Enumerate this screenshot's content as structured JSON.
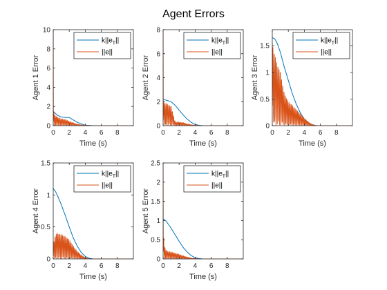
{
  "figure_title": "Agent Errors",
  "colors": {
    "kdistance": "#0072BD",
    "error": "#D95319",
    "axis": "#262626"
  },
  "chart_data": [
    {
      "type": "line",
      "title": "",
      "xlabel": "Time (s)",
      "ylabel": "Agent 1 Error",
      "xlim": [
        0,
        10
      ],
      "ylim": [
        0,
        10
      ],
      "xticks": [
        0,
        2,
        4,
        6,
        8
      ],
      "yticks": [
        0,
        2,
        4,
        6,
        8,
        10
      ],
      "grid": false,
      "legend": {
        "location": "top-right",
        "entries": [
          {
            "label": "k||e",
            "subscript": "T",
            "suffix": "||",
            "color": "#0072BD"
          },
          {
            "label": "||e||",
            "color": "#D95319"
          }
        ]
      },
      "series": [
        {
          "name": "k||eT||",
          "color": "#0072BD",
          "x": [
            0,
            0.5,
            1,
            1.5,
            2,
            2.5,
            3,
            3.5,
            4,
            4.5,
            5,
            6,
            8,
            10
          ],
          "y": [
            1.5,
            1.1,
            0.9,
            0.85,
            0.85,
            0.6,
            0.35,
            0.18,
            0.05,
            0.02,
            0,
            0,
            0,
            0
          ]
        },
        {
          "name": "||e||",
          "color": "#D95319",
          "x": [
            0,
            0.02,
            0.1,
            0.3,
            0.5,
            1,
            1.5,
            2,
            2.5,
            3,
            3.5,
            4,
            4.5,
            5,
            10
          ],
          "y": [
            10,
            1.6,
            1.3,
            1.0,
            0.9,
            0.7,
            0.65,
            0.45,
            0.3,
            0.15,
            0.08,
            0.03,
            0.01,
            0,
            0
          ],
          "oscillating": true
        }
      ]
    },
    {
      "type": "line",
      "title": "",
      "xlabel": "Time (s)",
      "ylabel": "Agent 2 Error",
      "xlim": [
        0,
        10
      ],
      "ylim": [
        0,
        8
      ],
      "xticks": [
        0,
        2,
        4,
        6,
        8
      ],
      "yticks": [
        0,
        2,
        4,
        6,
        8
      ],
      "grid": false,
      "legend": {
        "location": "top-right",
        "entries": [
          {
            "label": "k||e",
            "subscript": "T",
            "suffix": "||",
            "color": "#0072BD"
          },
          {
            "label": "||e||",
            "color": "#D95319"
          }
        ]
      },
      "series": [
        {
          "name": "k||eT||",
          "color": "#0072BD",
          "x": [
            0,
            0.5,
            1,
            1.5,
            2,
            2.5,
            3,
            3.5,
            4,
            4.5,
            5,
            6,
            8,
            10
          ],
          "y": [
            2.2,
            2.1,
            2.0,
            1.7,
            1.3,
            0.9,
            0.55,
            0.28,
            0.1,
            0.03,
            0,
            0,
            0,
            0
          ]
        },
        {
          "name": "||e||",
          "color": "#D95319",
          "x": [
            0,
            0.02,
            0.1,
            0.3,
            0.5,
            1,
            1.5,
            2,
            2.5,
            3,
            3.5,
            4,
            4.5,
            5,
            10
          ],
          "y": [
            8,
            2.0,
            1.9,
            1.9,
            1.8,
            1.6,
            0.3,
            0.3,
            0.25,
            0.15,
            0.08,
            0.03,
            0.01,
            0,
            0
          ],
          "oscillating": true
        }
      ]
    },
    {
      "type": "line",
      "title": "",
      "xlabel": "Time (s)",
      "ylabel": "Agent 3 Error",
      "xlim": [
        0,
        10
      ],
      "ylim": [
        0,
        1.8
      ],
      "xticks": [
        0,
        2,
        4,
        6,
        8
      ],
      "yticks": [
        0,
        0.5,
        1,
        1.5
      ],
      "ytick_labels": [
        "0",
        "0.5",
        "1",
        "1.5"
      ],
      "grid": false,
      "legend": {
        "location": "top-right",
        "entries": [
          {
            "label": "k||e",
            "subscript": "T",
            "suffix": "||",
            "color": "#0072BD"
          },
          {
            "label": "||e||",
            "color": "#D95319"
          }
        ]
      },
      "series": [
        {
          "name": "k||eT||",
          "color": "#0072BD",
          "x": [
            0,
            0.3,
            0.6,
            1,
            1.5,
            2,
            2.5,
            3,
            3.5,
            4,
            4.5,
            5,
            5.5,
            6,
            8,
            10
          ],
          "y": [
            1.65,
            1.63,
            1.55,
            1.38,
            1.1,
            0.85,
            0.6,
            0.4,
            0.24,
            0.12,
            0.05,
            0.02,
            0,
            0,
            0,
            0
          ]
        },
        {
          "name": "||e||",
          "color": "#D95319",
          "x": [
            0,
            0.1,
            0.3,
            0.5,
            1,
            1.5,
            2,
            2.5,
            3,
            3.5,
            4,
            4.5,
            5,
            5.5,
            10
          ],
          "y": [
            1.55,
            1.45,
            1.35,
            1.2,
            1.0,
            0.6,
            0.45,
            0.38,
            0.3,
            0.22,
            0.14,
            0.07,
            0.02,
            0,
            0
          ],
          "oscillating": true
        }
      ]
    },
    {
      "type": "line",
      "title": "",
      "xlabel": "Time (s)",
      "ylabel": "Agent 4 Error",
      "xlim": [
        0,
        10
      ],
      "ylim": [
        0,
        1.5
      ],
      "xticks": [
        0,
        2,
        4,
        6,
        8
      ],
      "yticks": [
        0,
        0.5,
        1,
        1.5
      ],
      "ytick_labels": [
        "0",
        "0.5",
        "1",
        "1.5"
      ],
      "grid": false,
      "legend": {
        "location": "top-right",
        "entries": [
          {
            "label": "k||e",
            "subscript": "T",
            "suffix": "||",
            "color": "#0072BD"
          },
          {
            "label": "||e||",
            "color": "#D95319"
          }
        ]
      },
      "series": [
        {
          "name": "k||eT||",
          "color": "#0072BD",
          "x": [
            0,
            0.3,
            0.6,
            1,
            1.5,
            2,
            2.5,
            3,
            3.5,
            4,
            4.5,
            5,
            6,
            8,
            10
          ],
          "y": [
            1.1,
            1.05,
            0.97,
            0.85,
            0.68,
            0.5,
            0.33,
            0.2,
            0.1,
            0.04,
            0.01,
            0,
            0,
            0,
            0
          ]
        },
        {
          "name": "||e||",
          "color": "#D95319",
          "x": [
            0,
            0.1,
            0.3,
            0.5,
            1,
            1.5,
            2,
            2.5,
            3,
            3.5,
            4,
            4.5,
            10
          ],
          "y": [
            0.15,
            0.3,
            0.38,
            0.4,
            0.38,
            0.35,
            0.3,
            0.2,
            0.12,
            0.06,
            0.02,
            0,
            0
          ],
          "oscillating": true
        }
      ]
    },
    {
      "type": "line",
      "title": "",
      "xlabel": "Time (s)",
      "ylabel": "Agent 5 Error",
      "xlim": [
        0,
        10
      ],
      "ylim": [
        0,
        2.5
      ],
      "xticks": [
        0,
        2,
        4,
        6,
        8
      ],
      "yticks": [
        0,
        0.5,
        1,
        1.5,
        2,
        2.5
      ],
      "ytick_labels": [
        "0",
        "0.5",
        "1",
        "1.5",
        "2",
        "2.5"
      ],
      "grid": false,
      "legend": {
        "location": "top-right",
        "entries": [
          {
            "label": "k||e",
            "subscript": "T",
            "suffix": "||",
            "color": "#0072BD"
          },
          {
            "label": "||e||",
            "color": "#D95319"
          }
        ]
      },
      "series": [
        {
          "name": "k||eT||",
          "color": "#0072BD",
          "x": [
            0,
            0.3,
            0.6,
            1,
            1.5,
            2,
            2.5,
            3,
            3.5,
            4,
            4.5,
            5,
            6,
            8,
            10
          ],
          "y": [
            1.05,
            1.0,
            0.92,
            0.8,
            0.63,
            0.46,
            0.3,
            0.18,
            0.09,
            0.03,
            0.01,
            0,
            0,
            0,
            0
          ]
        },
        {
          "name": "||e||",
          "color": "#D95319",
          "x": [
            0,
            0.02,
            0.1,
            0.3,
            0.5,
            1,
            1.5,
            2,
            2.5,
            3,
            3.5,
            4,
            4.5,
            10
          ],
          "y": [
            2.5,
            0.8,
            0.4,
            0.25,
            0.2,
            0.18,
            0.15,
            0.12,
            0.08,
            0.05,
            0.02,
            0.01,
            0,
            0
          ],
          "oscillating": true
        }
      ]
    }
  ]
}
